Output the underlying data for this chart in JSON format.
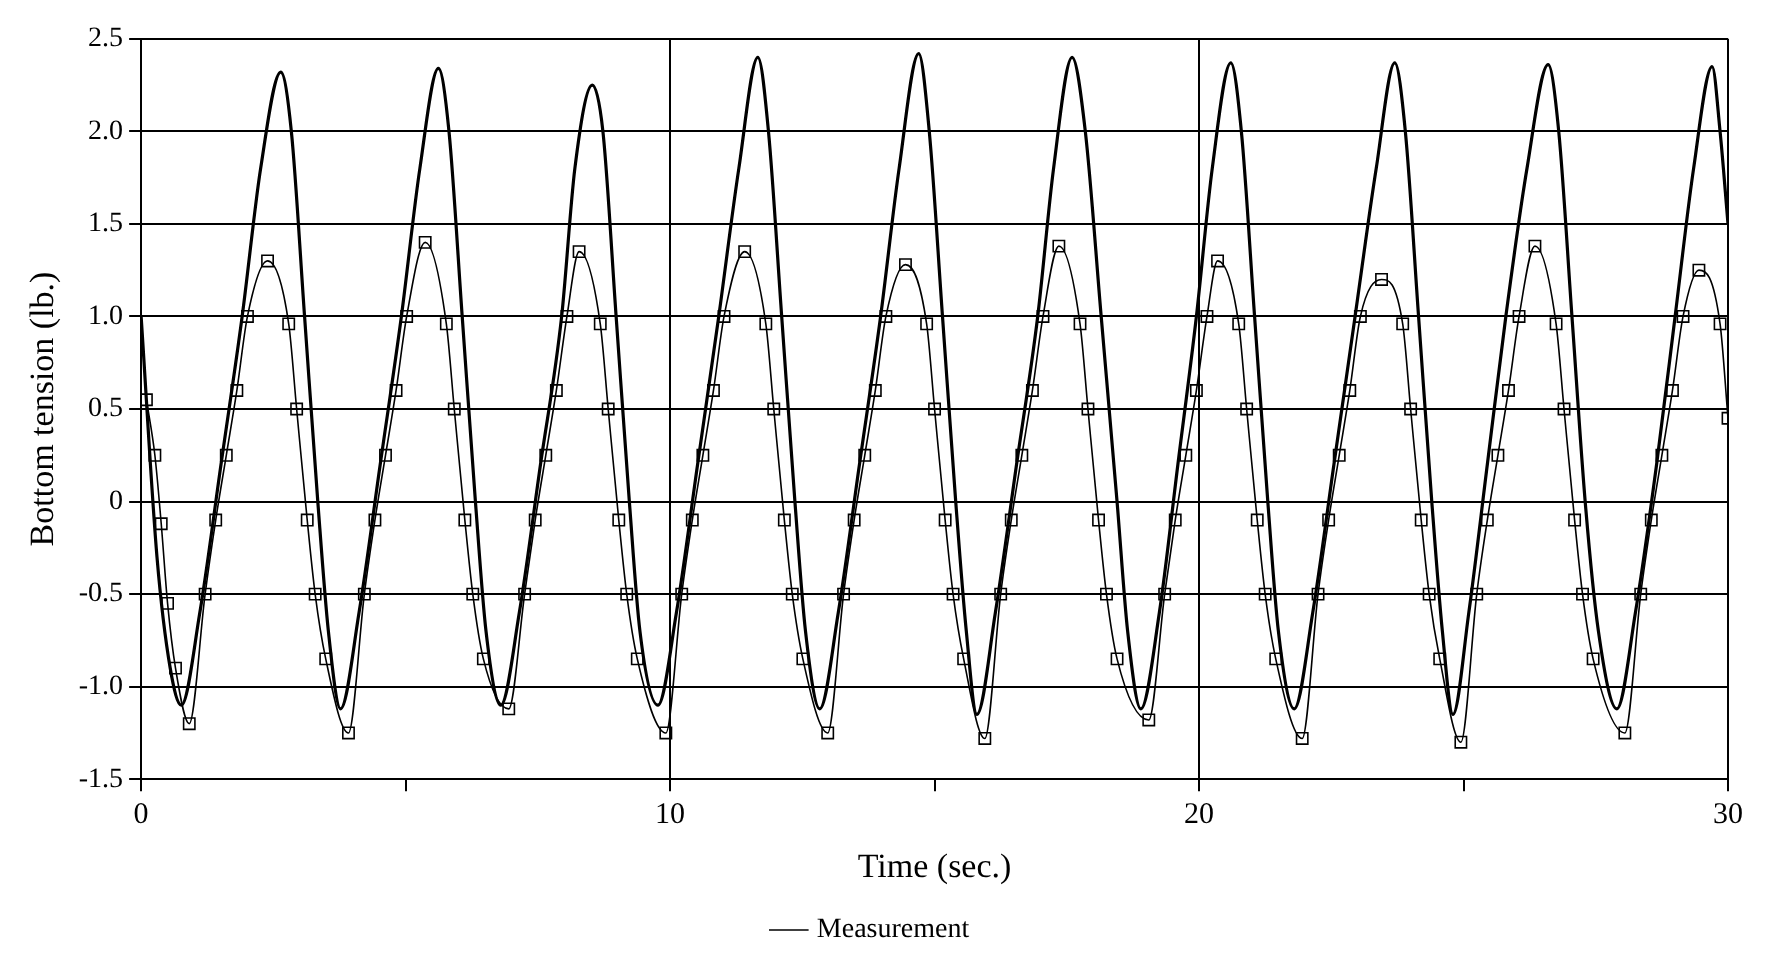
{
  "chart_data": {
    "type": "line",
    "xlabel": "Time (sec.)",
    "ylabel": "Bottom tension (lb.)",
    "xlim": [
      0,
      30
    ],
    "xticks": [
      0,
      {
        "value": 5,
        "label": null
      },
      10,
      {
        "value": 15,
        "label": null
      },
      20,
      {
        "value": 25,
        "label": null
      },
      30
    ],
    "ylim": [
      -1.5,
      2.5
    ],
    "yticks": [
      -1.5,
      {
        "value": -1,
        "label": "-1.0"
      },
      -0.5,
      0,
      0.5,
      {
        "value": 1,
        "label": "1.0"
      },
      1.5,
      {
        "value": 2,
        "label": "2.0"
      },
      2.5
    ],
    "grid": true,
    "legend": "bottom",
    "line_style": "solid",
    "series": [
      {
        "name": "Measurement",
        "color": "#000000",
        "marker": "none",
        "x": [
          0,
          0.3,
          0.55,
          0.76,
          1.11,
          1.51,
          1.91,
          2.26,
          2.64,
          2.84,
          3.09,
          3.34,
          3.54,
          3.77,
          4.12,
          4.52,
          4.92,
          5.27,
          5.62,
          5.82,
          6.07,
          6.32,
          6.52,
          6.8,
          7.15,
          7.55,
          7.95,
          8.2,
          8.53,
          8.73,
          8.98,
          9.23,
          9.43,
          9.77,
          10.12,
          10.52,
          10.92,
          11.3,
          11.66,
          11.86,
          12.11,
          12.36,
          12.56,
          12.83,
          13.18,
          13.58,
          13.98,
          14.33,
          14.7,
          14.9,
          15.15,
          15.4,
          15.6,
          15.8,
          16.15,
          16.55,
          16.95,
          17.25,
          17.6,
          17.85,
          18.15,
          18.45,
          18.65,
          18.9,
          19.25,
          19.6,
          19.95,
          20.25,
          20.6,
          20.8,
          21.05,
          21.3,
          21.5,
          21.8,
          22.15,
          22.55,
          22.95,
          23.35,
          23.7,
          23.9,
          24.15,
          24.4,
          24.6,
          24.8,
          25.1,
          25.45,
          25.8,
          26.2,
          26.6,
          26.8,
          27.05,
          27.3,
          27.55,
          27.9,
          28.25,
          28.65,
          29.0,
          29.35,
          29.7,
          29.85,
          30.0
        ],
        "values": [
          1.0,
          -0.3,
          -0.9,
          -1.1,
          -0.6,
          0.2,
          1.0,
          1.8,
          2.32,
          2.0,
          1.0,
          0.0,
          -0.7,
          -1.12,
          -0.6,
          0.2,
          1.0,
          1.8,
          2.34,
          2.0,
          1.0,
          0.0,
          -0.7,
          -1.1,
          -0.6,
          0.2,
          1.0,
          1.8,
          2.25,
          2.0,
          1.0,
          0.0,
          -0.7,
          -1.1,
          -0.6,
          0.2,
          1.0,
          1.8,
          2.4,
          2.0,
          1.0,
          0.0,
          -0.7,
          -1.12,
          -0.6,
          0.2,
          1.0,
          1.8,
          2.42,
          2.0,
          1.0,
          0.0,
          -0.7,
          -1.15,
          -0.6,
          0.2,
          1.0,
          1.8,
          2.4,
          2.0,
          1.0,
          0.0,
          -0.7,
          -1.12,
          -0.6,
          0.2,
          1.0,
          1.8,
          2.37,
          2.0,
          1.0,
          0.0,
          -0.7,
          -1.12,
          -0.6,
          0.2,
          1.0,
          1.8,
          2.37,
          2.0,
          1.0,
          0.0,
          -0.7,
          -1.15,
          -0.6,
          0.2,
          1.0,
          1.8,
          2.36,
          2.0,
          1.0,
          0.0,
          -0.7,
          -1.12,
          -0.6,
          0.2,
          1.0,
          1.8,
          2.35,
          2.0,
          1.5
        ]
      },
      {
        "color": "#000000",
        "marker": "square",
        "x": [
          0.1,
          0.26,
          0.38,
          0.5,
          0.65,
          0.91,
          1.21,
          1.41,
          1.61,
          1.81,
          2.01,
          2.39,
          2.79,
          2.94,
          3.14,
          3.29,
          3.49,
          3.92,
          4.22,
          4.42,
          4.62,
          4.82,
          5.02,
          5.37,
          5.77,
          5.92,
          6.12,
          6.27,
          6.47,
          6.95,
          7.25,
          7.45,
          7.65,
          7.85,
          8.05,
          8.28,
          8.68,
          8.83,
          9.03,
          9.18,
          9.38,
          9.92,
          10.22,
          10.42,
          10.62,
          10.82,
          11.02,
          11.41,
          11.81,
          11.96,
          12.16,
          12.31,
          12.51,
          12.98,
          13.28,
          13.48,
          13.68,
          13.88,
          14.08,
          14.45,
          14.85,
          15.0,
          15.2,
          15.35,
          15.55,
          15.95,
          16.25,
          16.45,
          16.65,
          16.85,
          17.05,
          17.35,
          17.75,
          17.9,
          18.1,
          18.25,
          18.45,
          19.05,
          19.35,
          19.55,
          19.75,
          19.95,
          20.15,
          20.35,
          20.75,
          20.9,
          21.1,
          21.25,
          21.45,
          21.95,
          22.25,
          22.45,
          22.65,
          22.85,
          23.05,
          23.45,
          23.85,
          24.0,
          24.2,
          24.35,
          24.55,
          24.95,
          25.25,
          25.45,
          25.65,
          25.85,
          26.05,
          26.35,
          26.75,
          26.9,
          27.1,
          27.25,
          27.45,
          28.05,
          28.35,
          28.55,
          28.75,
          28.95,
          29.15,
          29.45,
          29.85,
          30.0
        ],
        "values": [
          0.55,
          0.25,
          -0.12,
          -0.55,
          -0.9,
          -1.2,
          -0.5,
          -0.1,
          0.25,
          0.6,
          1.0,
          1.3,
          0.96,
          0.5,
          -0.1,
          -0.5,
          -0.85,
          -1.25,
          -0.5,
          -0.1,
          0.25,
          0.6,
          1.0,
          1.4,
          0.96,
          0.5,
          -0.1,
          -0.5,
          -0.85,
          -1.12,
          -0.5,
          -0.1,
          0.25,
          0.6,
          1.0,
          1.35,
          0.96,
          0.5,
          -0.1,
          -0.5,
          -0.85,
          -1.25,
          -0.5,
          -0.1,
          0.25,
          0.6,
          1.0,
          1.35,
          0.96,
          0.5,
          -0.1,
          -0.5,
          -0.85,
          -1.25,
          -0.5,
          -0.1,
          0.25,
          0.6,
          1.0,
          1.28,
          0.96,
          0.5,
          -0.1,
          -0.5,
          -0.85,
          -1.28,
          -0.5,
          -0.1,
          0.25,
          0.6,
          1.0,
          1.38,
          0.96,
          0.5,
          -0.1,
          -0.5,
          -0.85,
          -1.18,
          -0.5,
          -0.1,
          0.25,
          0.6,
          1.0,
          1.3,
          0.96,
          0.5,
          -0.1,
          -0.5,
          -0.85,
          -1.28,
          -0.5,
          -0.1,
          0.25,
          0.6,
          1.0,
          1.2,
          0.96,
          0.5,
          -0.1,
          -0.5,
          -0.85,
          -1.3,
          -0.5,
          -0.1,
          0.25,
          0.6,
          1.0,
          1.38,
          0.96,
          0.5,
          -0.1,
          -0.5,
          -0.85,
          -1.25,
          -0.5,
          -0.1,
          0.25,
          0.6,
          1.0,
          1.25,
          0.96,
          0.45
        ]
      }
    ]
  }
}
